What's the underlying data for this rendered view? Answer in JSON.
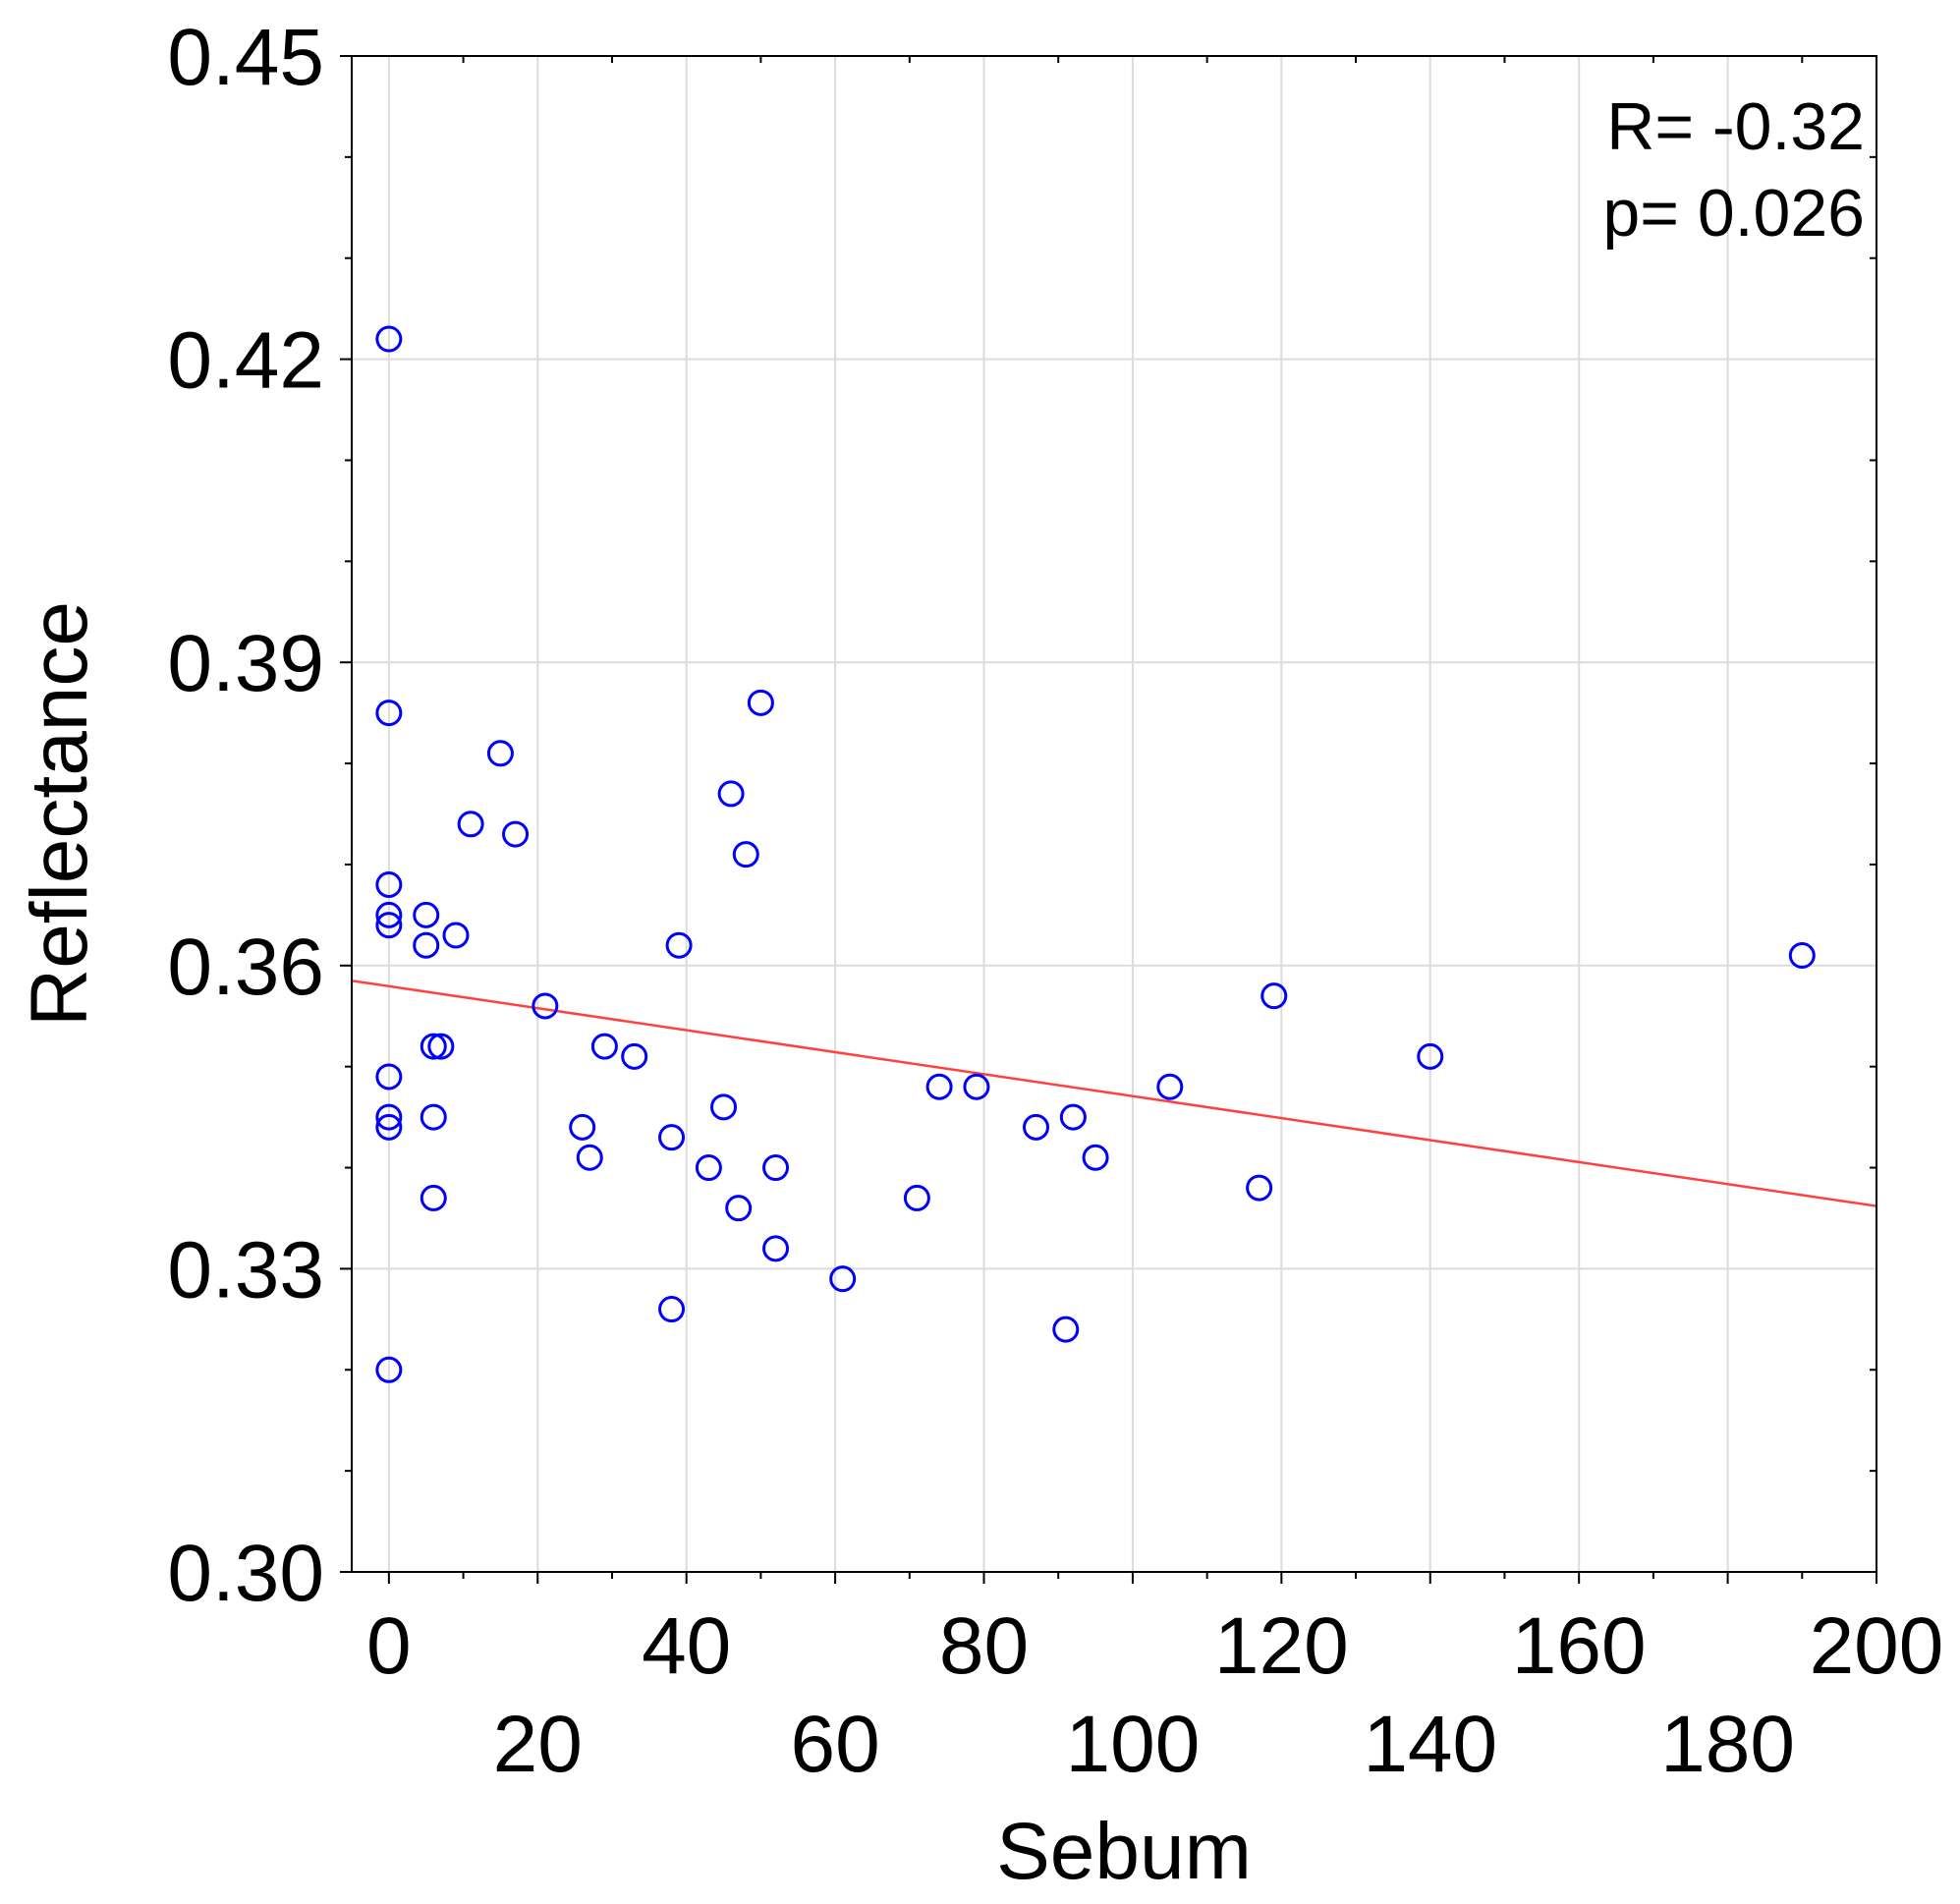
{
  "chart_data": {
    "type": "scatter",
    "title": "",
    "xlabel": "Sebum",
    "ylabel": "Reflectance",
    "xlim": [
      -5,
      200
    ],
    "ylim": [
      0.3,
      0.45
    ],
    "grid": true,
    "x_ticks": [
      0,
      20,
      40,
      60,
      80,
      100,
      120,
      140,
      160,
      180,
      200
    ],
    "x_tick_labels": [
      "0",
      "20",
      "40",
      "60",
      "80",
      "100",
      "120",
      "140",
      "160",
      "180",
      "200"
    ],
    "y_ticks": [
      0.3,
      0.33,
      0.36,
      0.39,
      0.42,
      0.45
    ],
    "y_tick_labels": [
      "0.30",
      "0.33",
      "0.36",
      "0.39",
      "0.42",
      "0.45"
    ],
    "annotations": [
      "R= -0.32",
      "p= 0.026"
    ],
    "series": [
      {
        "name": "observations",
        "marker": "open-circle",
        "color": "#0000ff",
        "points": [
          [
            0,
            0.422
          ],
          [
            0,
            0.385
          ],
          [
            0,
            0.368
          ],
          [
            0,
            0.365
          ],
          [
            0,
            0.364
          ],
          [
            0,
            0.349
          ],
          [
            0,
            0.345
          ],
          [
            0,
            0.344
          ],
          [
            0,
            0.32
          ],
          [
            5,
            0.365
          ],
          [
            5,
            0.362
          ],
          [
            6,
            0.352
          ],
          [
            7,
            0.352
          ],
          [
            6,
            0.345
          ],
          [
            6,
            0.337
          ],
          [
            9,
            0.363
          ],
          [
            11,
            0.374
          ],
          [
            15,
            0.381
          ],
          [
            17,
            0.373
          ],
          [
            21,
            0.356
          ],
          [
            26,
            0.344
          ],
          [
            27,
            0.341
          ],
          [
            29,
            0.352
          ],
          [
            33,
            0.351
          ],
          [
            38,
            0.343
          ],
          [
            38,
            0.326
          ],
          [
            39,
            0.362
          ],
          [
            43,
            0.34
          ],
          [
            45,
            0.346
          ],
          [
            46,
            0.377
          ],
          [
            47,
            0.336
          ],
          [
            48,
            0.371
          ],
          [
            50,
            0.386
          ],
          [
            52,
            0.34
          ],
          [
            52,
            0.332
          ],
          [
            61,
            0.329
          ],
          [
            71,
            0.337
          ],
          [
            74,
            0.348
          ],
          [
            79,
            0.348
          ],
          [
            87,
            0.344
          ],
          [
            91,
            0.324
          ],
          [
            92,
            0.345
          ],
          [
            95,
            0.341
          ],
          [
            105,
            0.348
          ],
          [
            117,
            0.338
          ],
          [
            119,
            0.357
          ],
          [
            140,
            0.351
          ],
          [
            190,
            0.361
          ]
        ]
      },
      {
        "name": "regression",
        "type": "line",
        "color": "#ff4040",
        "x": [
          -5,
          200
        ],
        "y": [
          0.3585,
          0.3362
        ]
      }
    ]
  }
}
